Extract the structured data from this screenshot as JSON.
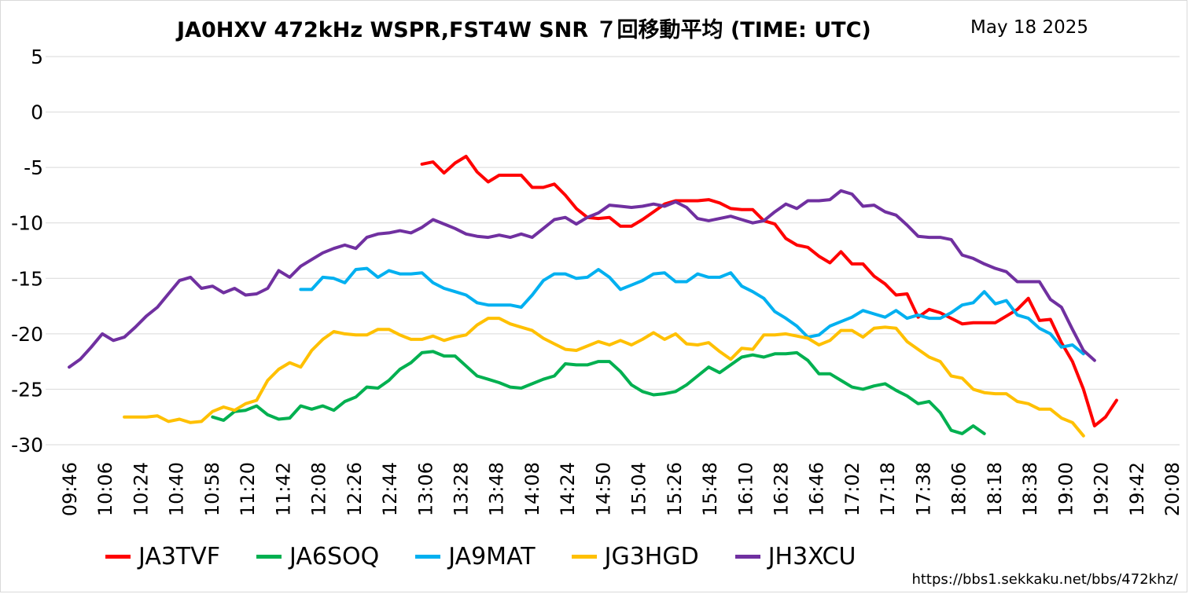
{
  "page": {
    "title": "JA0HXV 472kHz WSPR,FST4W SNR ７回移動平均 (TIME: UTC)",
    "date": "May 18 2025",
    "source_url": "https://bbs1.sekkaku.net/bbs/472khz/"
  },
  "chart_data": {
    "type": "line",
    "title": "JA0HXV 472kHz WSPR,FST4W SNR ７回移動平均 (TIME: UTC)",
    "ylim": [
      -30,
      5
    ],
    "yticks": [
      5,
      0,
      -5,
      -10,
      -15,
      -20,
      -25,
      -30
    ],
    "grid": "horizontal",
    "legend_position": "bottom",
    "x_tick_labels": [
      "09:46",
      "10:06",
      "10:24",
      "10:40",
      "10:58",
      "11:20",
      "11:42",
      "12:08",
      "12:26",
      "12:44",
      "13:06",
      "13:28",
      "13:48",
      "14:08",
      "14:24",
      "14:50",
      "15:04",
      "15:26",
      "15:48",
      "16:10",
      "16:28",
      "16:46",
      "17:02",
      "17:18",
      "17:38",
      "18:06",
      "18:18",
      "18:38",
      "19:00",
      "19:20",
      "19:42",
      "20:08"
    ],
    "x_count": 101,
    "series": [
      {
        "name": "JA3TVF",
        "color": "#ff0000",
        "start": 32,
        "values": [
          -4.7,
          -4.5,
          -5.5,
          -4.6,
          -4.0,
          -5.4,
          -6.3,
          -5.7,
          -5.7,
          -5.7,
          -6.8,
          -6.8,
          -6.5,
          -7.5,
          -8.7,
          -9.5,
          -9.6,
          -9.5,
          -10.3,
          -10.3,
          -9.7,
          -9.0,
          -8.3,
          -8.0,
          -8.0,
          -8.0,
          -7.9,
          -8.2,
          -8.7,
          -8.8,
          -8.8,
          -9.8,
          -10.1,
          -11.4,
          -12.0,
          -12.2,
          -13.0,
          -13.6,
          -12.6,
          -13.7,
          -13.7,
          -14.8,
          -15.5,
          -16.5,
          -16.4,
          -18.5,
          -17.8,
          -18.1,
          -18.6,
          -19.1,
          -19.0,
          -19.0,
          -19.0,
          -18.4,
          -17.8,
          -16.8,
          -18.8,
          -18.7,
          -20.8,
          -22.5,
          -25.0,
          -28.3,
          -27.5,
          -26.0
        ]
      },
      {
        "name": "JA6SOQ",
        "color": "#00b050",
        "start": 13,
        "values": [
          -27.5,
          -27.8,
          -27.0,
          -26.9,
          -26.5,
          -27.3,
          -27.7,
          -27.6,
          -26.5,
          -26.8,
          -26.5,
          -26.9,
          -26.1,
          -25.7,
          -24.8,
          -24.9,
          -24.2,
          -23.2,
          -22.6,
          -21.7,
          -21.6,
          -22.0,
          -22.0,
          -22.9,
          -23.8,
          -24.1,
          -24.4,
          -24.8,
          -24.9,
          -24.5,
          -24.1,
          -23.8,
          -22.7,
          -22.8,
          -22.8,
          -22.5,
          -22.5,
          -23.4,
          -24.6,
          -25.2,
          -25.5,
          -25.4,
          -25.2,
          -24.6,
          -23.8,
          -23.0,
          -23.5,
          -22.8,
          -22.1,
          -21.9,
          -22.1,
          -21.8,
          -21.8,
          -21.7,
          -22.4,
          -23.6,
          -23.6,
          -24.2,
          -24.8,
          -25.0,
          -24.7,
          -24.5,
          -25.1,
          -25.6,
          -26.3,
          -26.1,
          -27.1,
          -28.7,
          -29.0,
          -28.3,
          -29.0
        ]
      },
      {
        "name": "JA9MAT",
        "color": "#00b0f0",
        "start": 21,
        "values": [
          -16.0,
          -16.0,
          -14.9,
          -15.0,
          -15.4,
          -14.2,
          -14.1,
          -14.9,
          -14.3,
          -14.6,
          -14.6,
          -14.5,
          -15.4,
          -15.9,
          -16.2,
          -16.5,
          -17.2,
          -17.4,
          -17.4,
          -17.4,
          -17.6,
          -16.5,
          -15.2,
          -14.6,
          -14.6,
          -15.0,
          -14.9,
          -14.2,
          -14.9,
          -16.0,
          -15.6,
          -15.2,
          -14.6,
          -14.5,
          -15.3,
          -15.3,
          -14.6,
          -14.9,
          -14.9,
          -14.5,
          -15.7,
          -16.2,
          -16.8,
          -18.0,
          -18.6,
          -19.3,
          -20.3,
          -20.1,
          -19.3,
          -18.9,
          -18.5,
          -17.9,
          -18.2,
          -18.5,
          -17.9,
          -18.6,
          -18.3,
          -18.6,
          -18.6,
          -18.1,
          -17.4,
          -17.2,
          -16.2,
          -17.3,
          -17.0,
          -18.3,
          -18.6,
          -19.5,
          -20.0,
          -21.2,
          -21.0,
          -21.8
        ]
      },
      {
        "name": "JG3HGD",
        "color": "#ffc000",
        "start": 5,
        "values": [
          -27.5,
          -27.5,
          -27.5,
          -27.4,
          -27.9,
          -27.7,
          -28.0,
          -27.9,
          -27.0,
          -26.6,
          -26.9,
          -26.3,
          -26.0,
          -24.2,
          -23.2,
          -22.6,
          -23.0,
          -21.5,
          -20.5,
          -19.8,
          -20.0,
          -20.1,
          -20.1,
          -19.6,
          -19.6,
          -20.1,
          -20.5,
          -20.5,
          -20.2,
          -20.6,
          -20.3,
          -20.1,
          -19.2,
          -18.6,
          -18.6,
          -19.1,
          -19.4,
          -19.7,
          -20.4,
          -20.9,
          -21.4,
          -21.5,
          -21.1,
          -20.7,
          -21.0,
          -20.6,
          -21.0,
          -20.5,
          -19.9,
          -20.5,
          -20.0,
          -20.9,
          -21.0,
          -20.8,
          -21.6,
          -22.3,
          -21.3,
          -21.4,
          -20.1,
          -20.1,
          -20.0,
          -20.2,
          -20.4,
          -21.0,
          -20.6,
          -19.7,
          -19.7,
          -20.3,
          -19.5,
          -19.4,
          -19.5,
          -20.7,
          -21.4,
          -22.1,
          -22.5,
          -23.8,
          -24.0,
          -25.0,
          -25.3,
          -25.4,
          -25.4,
          -26.1,
          -26.3,
          -26.8,
          -26.8,
          -27.6,
          -28.0,
          -29.2
        ]
      },
      {
        "name": "JH3XCU",
        "color": "#7030a0",
        "start": 0,
        "values": [
          -23.0,
          -22.3,
          -21.2,
          -20.0,
          -20.6,
          -20.3,
          -19.4,
          -18.4,
          -17.6,
          -16.4,
          -15.2,
          -14.9,
          -15.9,
          -15.7,
          -16.3,
          -15.9,
          -16.5,
          -16.4,
          -15.9,
          -14.3,
          -14.9,
          -13.9,
          -13.3,
          -12.7,
          -12.3,
          -12.0,
          -12.3,
          -11.3,
          -11.0,
          -10.9,
          -10.7,
          -10.9,
          -10.4,
          -9.7,
          -10.1,
          -10.5,
          -11.0,
          -11.2,
          -11.3,
          -11.1,
          -11.3,
          -11.0,
          -11.3,
          -10.5,
          -9.7,
          -9.5,
          -10.1,
          -9.5,
          -9.1,
          -8.4,
          -8.5,
          -8.6,
          -8.5,
          -8.3,
          -8.5,
          -8.1,
          -8.6,
          -9.6,
          -9.8,
          -9.6,
          -9.4,
          -9.7,
          -10.0,
          -9.8,
          -9.0,
          -8.3,
          -8.7,
          -8.0,
          -8.0,
          -7.9,
          -7.1,
          -7.4,
          -8.5,
          -8.4,
          -9.0,
          -9.3,
          -10.2,
          -11.2,
          -11.3,
          -11.3,
          -11.5,
          -12.9,
          -13.2,
          -13.7,
          -14.1,
          -14.4,
          -15.3,
          -15.3,
          -15.3,
          -16.9,
          -17.6,
          -19.6,
          -21.5,
          -22.4
        ]
      }
    ]
  }
}
